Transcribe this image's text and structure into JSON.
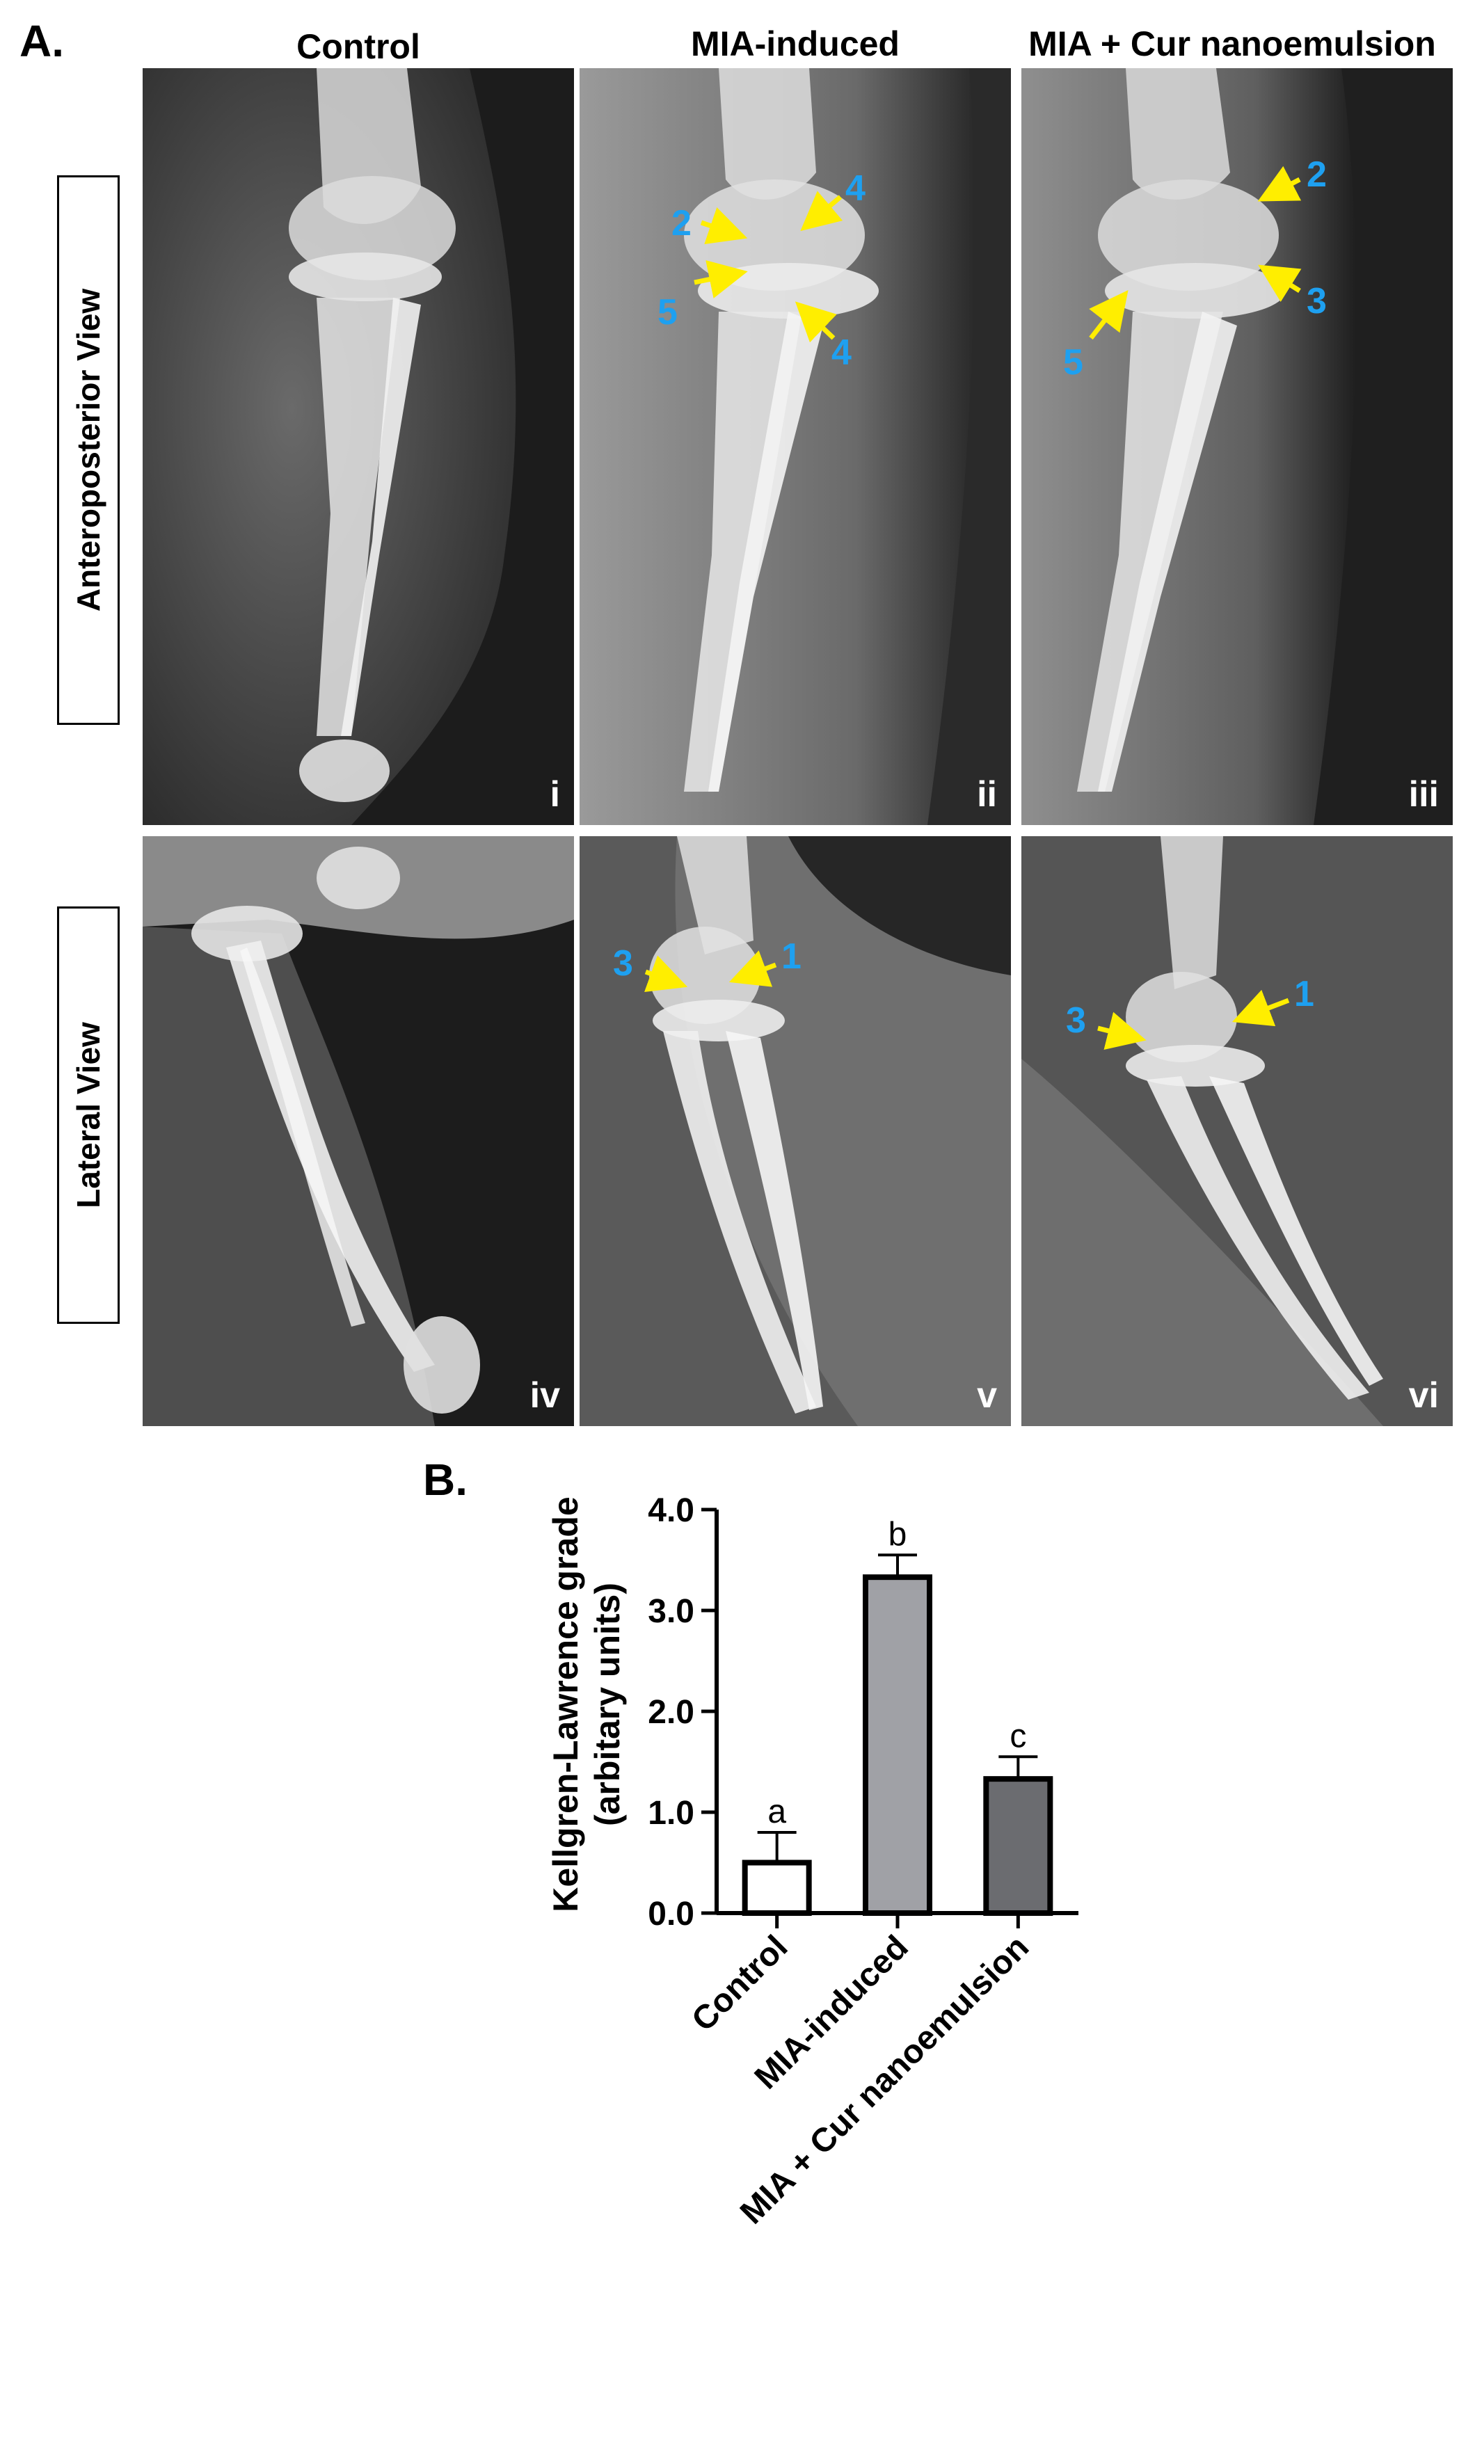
{
  "panel_a": {
    "label": "A.",
    "column_titles": [
      "Control",
      "MIA-induced",
      "MIA + Cur nanoemulsion"
    ],
    "row_labels": [
      "Anteroposterior View",
      "Lateral View"
    ],
    "panels": [
      {
        "roman": "i",
        "markers": []
      },
      {
        "roman": "ii",
        "markers": [
          "2",
          "4",
          "5",
          "4"
        ]
      },
      {
        "roman": "iii",
        "markers": [
          "2",
          "3",
          "5"
        ]
      },
      {
        "roman": "iv",
        "markers": []
      },
      {
        "roman": "v",
        "markers": [
          "3",
          "1"
        ]
      },
      {
        "roman": "vi",
        "markers": [
          "3",
          "1"
        ]
      }
    ],
    "colors": {
      "arrow": "#ffee00",
      "marker_text": "#1ea0f0"
    }
  },
  "panel_b": {
    "label": "B.",
    "chart_data": {
      "type": "bar",
      "categories": [
        "Control",
        "MIA-induced",
        "MIA + Cur nanoemulsion"
      ],
      "values": [
        0.5,
        3.33,
        1.33
      ],
      "errors": [
        0.3,
        0.22,
        0.22
      ],
      "significance_letters": [
        "a",
        "b",
        "c"
      ],
      "ylabel_lines": [
        "Kellgren-Lawrence grade",
        "(arbitary units)"
      ],
      "xlabel": "",
      "ylim": [
        0,
        4
      ],
      "yticks": [
        "0.0",
        "1.0",
        "2.0",
        "3.0",
        "4.0"
      ],
      "bar_colors": [
        "#ffffff",
        "#a0a1a6",
        "#6b6c70"
      ]
    }
  }
}
